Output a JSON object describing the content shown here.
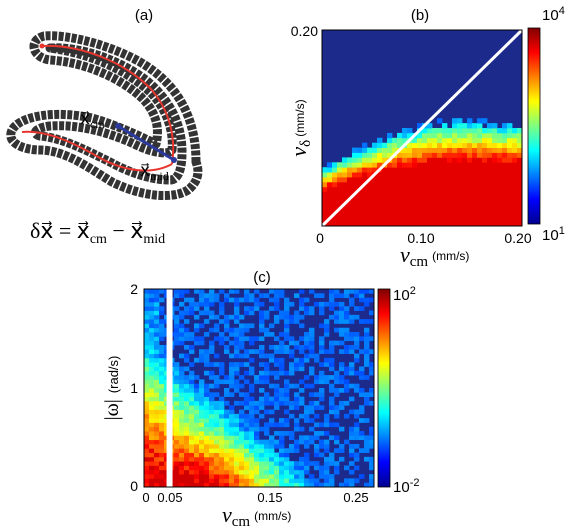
{
  "panel_labels": {
    "a": "(a)",
    "b": "(b)",
    "c": "(c)"
  },
  "panel_a": {
    "vec_cm": "x⃗",
    "sub_cm": "cm",
    "vec_mid": "x⃗",
    "sub_mid": "mid",
    "equation": {
      "lhs": "δx⃗ = x⃗",
      "sub1": "cm",
      "mid": " − x⃗",
      "sub2": "mid"
    },
    "colors": {
      "body": "#333333",
      "centerline": "#e8362f",
      "vector": "#2b3a9c"
    }
  },
  "chart_data": [
    {
      "id": "b",
      "type": "heatmap",
      "title": "(b)",
      "xlabel": {
        "symbol": "v",
        "sub": "cm",
        "unit": "(mm/s)"
      },
      "ylabel": {
        "symbol": "v",
        "sub": "δ",
        "unit": "(mm/s)"
      },
      "xlim": [
        0,
        0.2
      ],
      "ylim": [
        0,
        0.2
      ],
      "xtick_labels": [
        "0",
        "0.10",
        "0.20"
      ],
      "ytick_labels": [
        "0.20"
      ],
      "colorbar": {
        "scale": "log",
        "min_label_base": "10",
        "min_label_exp": "1",
        "max_label_base": "10",
        "max_label_exp": "4"
      },
      "overlay_line": {
        "from": [
          0,
          0
        ],
        "to": [
          0.2,
          0.2
        ],
        "color": "#ffffff"
      },
      "background_color": "#1c2a8c",
      "boundary_profile": {
        "x": [
          0,
          0.02,
          0.04,
          0.06,
          0.08,
          0.1,
          0.12,
          0.14,
          0.16,
          0.18,
          0.2
        ],
        "y": [
          0.055,
          0.067,
          0.077,
          0.085,
          0.092,
          0.098,
          0.102,
          0.103,
          0.102,
          0.1,
          0.1
        ]
      }
    },
    {
      "id": "c",
      "type": "heatmap",
      "title": "(c)",
      "xlabel": {
        "symbol": "v",
        "sub": "cm",
        "unit": "(mm/s)"
      },
      "ylabel": {
        "symbol": "|ω|",
        "unit": "(rad/s)"
      },
      "xlim": [
        0,
        0.27
      ],
      "ylim": [
        0,
        2
      ],
      "xtick_labels": [
        "0",
        "0.05",
        "0.15",
        "0.25"
      ],
      "ytick_labels": [
        "0",
        "1",
        "2"
      ],
      "colorbar": {
        "scale": "log",
        "min_label_base": "10",
        "min_label_exp": "-2",
        "max_label_base": "10",
        "max_label_exp": "2"
      },
      "gap_at_x": 0.03,
      "background_color": "#1c2a8c",
      "peak": {
        "x": 0.08,
        "y": 0.1
      }
    }
  ]
}
